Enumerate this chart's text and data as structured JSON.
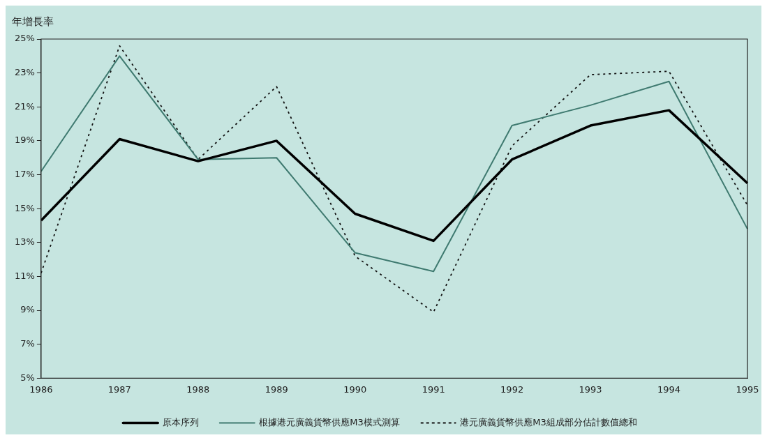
{
  "chart_data": {
    "type": "line",
    "ylabel": "年增長率",
    "categories": [
      "1986",
      "1987",
      "1988",
      "1989",
      "1990",
      "1991",
      "1992",
      "1993",
      "1994",
      "1995"
    ],
    "series": [
      {
        "name": "原本序列",
        "color": "#000000",
        "line_style": "solid",
        "values": [
          14.3,
          19.1,
          17.8,
          19.0,
          14.7,
          13.1,
          17.9,
          19.9,
          20.8,
          16.5
        ]
      },
      {
        "name": "根據港元廣義貨幣供應M3模式測算",
        "color": "#3f7a70",
        "line_style": "solid",
        "values": [
          17.2,
          24.0,
          17.9,
          18.0,
          12.4,
          11.3,
          19.9,
          21.1,
          22.5,
          13.8
        ]
      },
      {
        "name": "港元廣義貨幣供應M3組成部分估計數值總和",
        "color": "#111111",
        "line_style": "dotted",
        "values": [
          11.2,
          24.6,
          17.9,
          22.2,
          12.2,
          8.9,
          18.7,
          22.9,
          23.1,
          15.2
        ]
      }
    ],
    "ylim": [
      5,
      25
    ],
    "yticks": [
      {
        "value": 5,
        "label": "5%"
      },
      {
        "value": 7,
        "label": "7%"
      },
      {
        "value": 9,
        "label": "9%"
      },
      {
        "value": 11,
        "label": "11%"
      },
      {
        "value": 13,
        "label": "13%"
      },
      {
        "value": 15,
        "label": "15%"
      },
      {
        "value": 17,
        "label": "17%"
      },
      {
        "value": 19,
        "label": "19%"
      },
      {
        "value": 21,
        "label": "21%"
      },
      {
        "value": 23,
        "label": "23%"
      },
      {
        "value": 25,
        "label": "25%"
      }
    ],
    "grid": false,
    "marker": "none",
    "legend": "bottom"
  }
}
